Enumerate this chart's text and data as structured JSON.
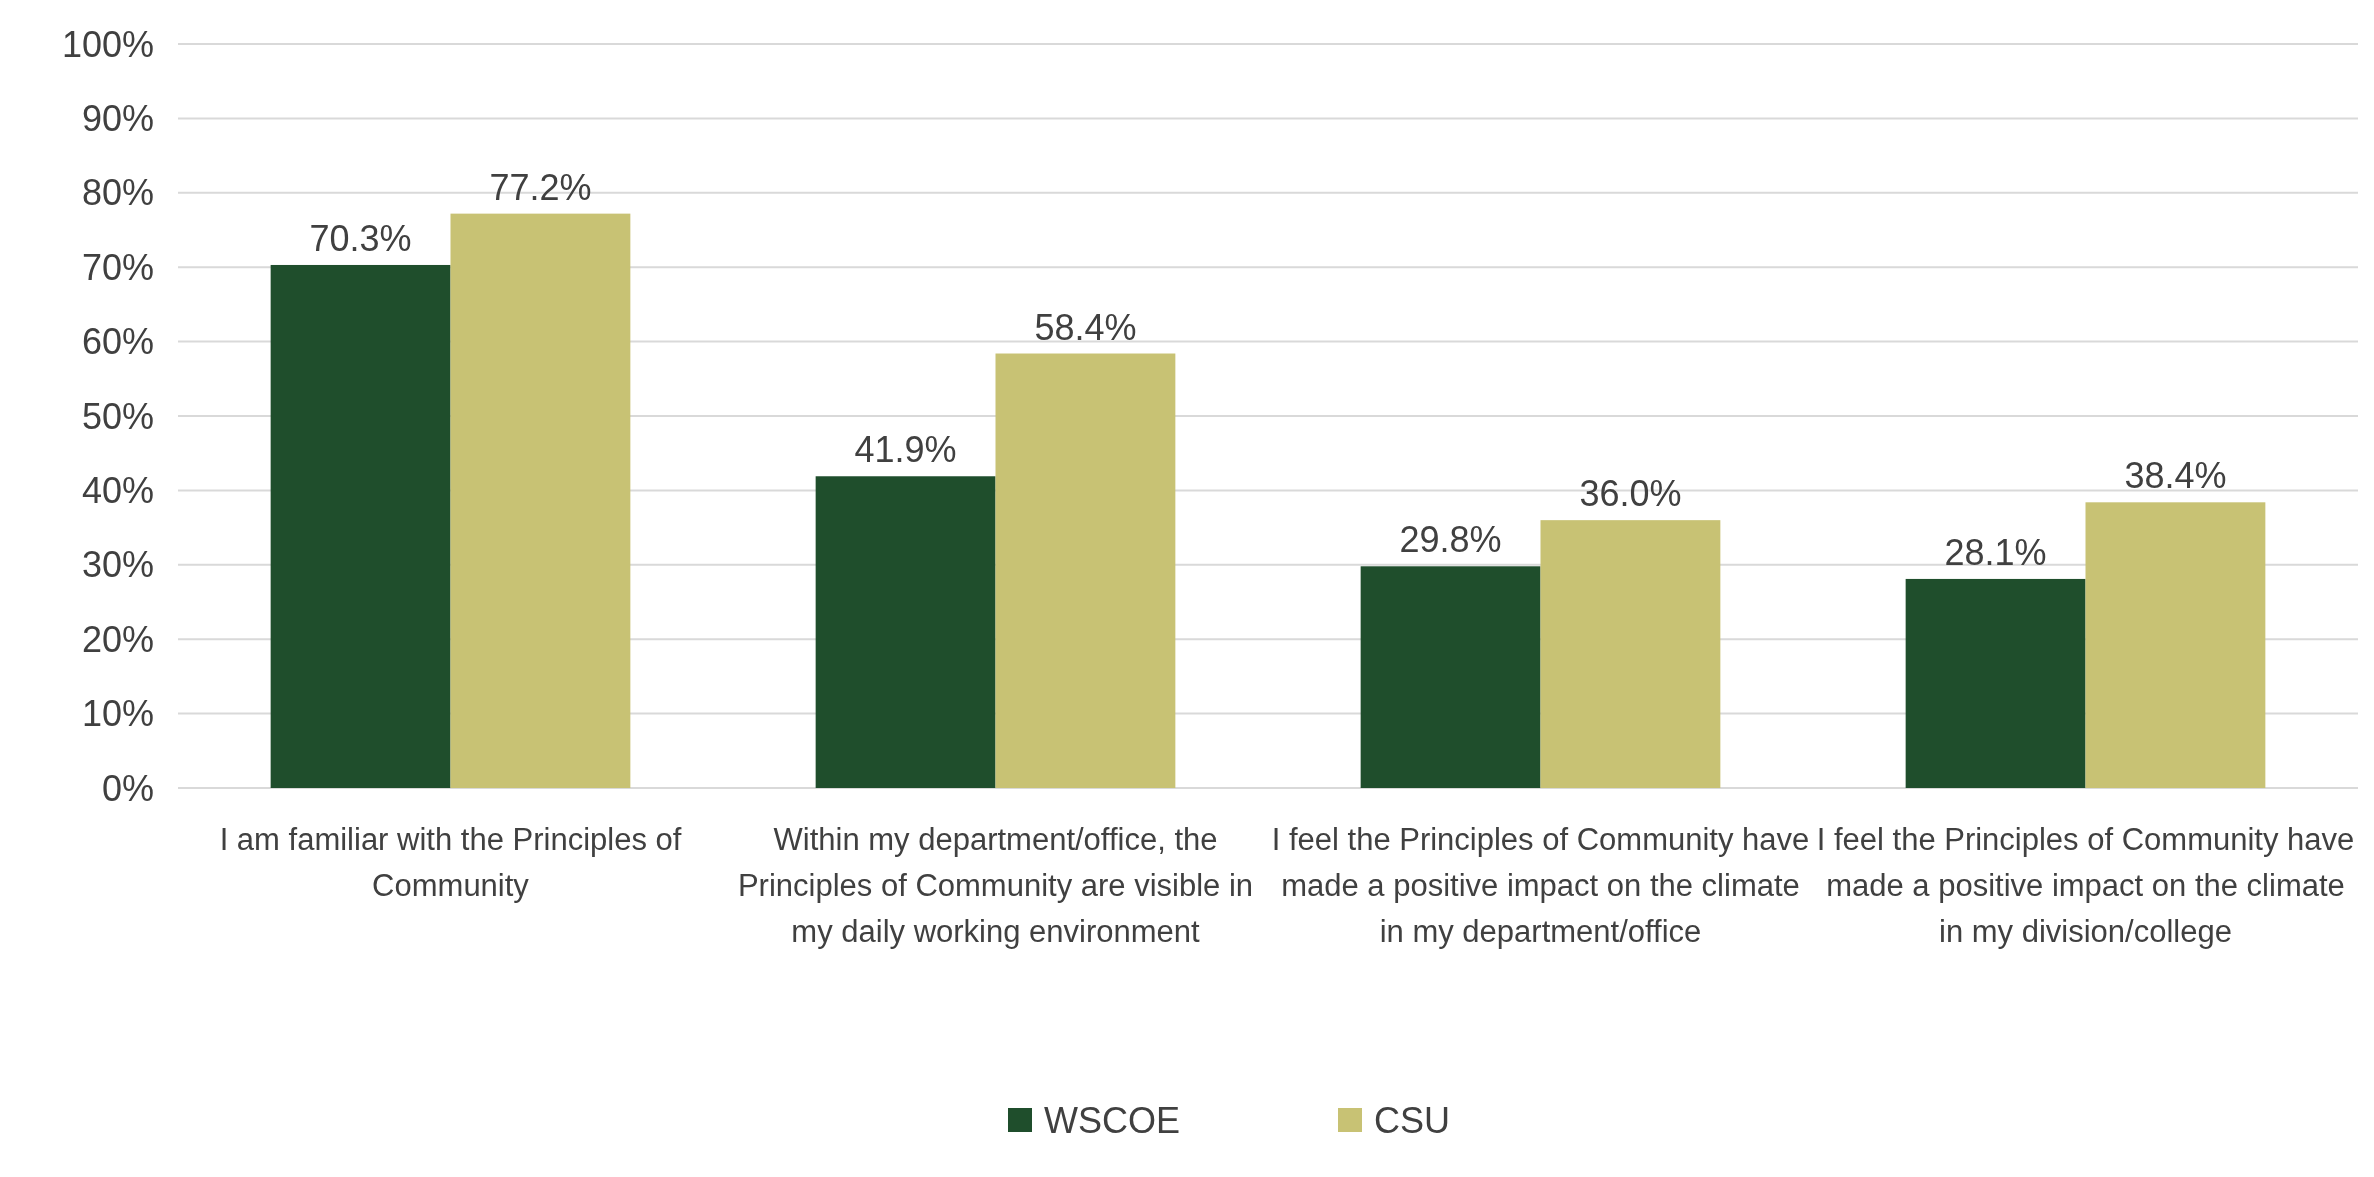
{
  "chart_data": {
    "type": "bar",
    "categories": [
      "I am familiar with the Principles of Community",
      "Within my department/office, the Principles of Community are visible in my daily working environment",
      "I feel the Principles of Community have made a positive impact on the climate in my department/office",
      "I feel the Principles of Community have made a positive impact on the climate in my division/college"
    ],
    "series": [
      {
        "name": "WSCOE",
        "color": "#1f4e2c",
        "values": [
          70.3,
          41.9,
          29.8,
          28.1
        ],
        "value_labels": [
          "70.3%",
          "41.9%",
          "29.8%",
          "28.1%"
        ]
      },
      {
        "name": "CSU",
        "color": "#c8c274",
        "values": [
          77.2,
          58.4,
          36.0,
          38.4
        ],
        "value_labels": [
          "77.2%",
          "58.4%",
          "36.0%",
          "38.4%"
        ]
      }
    ],
    "ylim": [
      0,
      100
    ],
    "yticks": [
      {
        "value": 0,
        "label": "0%"
      },
      {
        "value": 10,
        "label": "10%"
      },
      {
        "value": 20,
        "label": "20%"
      },
      {
        "value": 30,
        "label": "30%"
      },
      {
        "value": 40,
        "label": "40%"
      },
      {
        "value": 50,
        "label": "50%"
      },
      {
        "value": 60,
        "label": "60%"
      },
      {
        "value": 70,
        "label": "70%"
      },
      {
        "value": 80,
        "label": "80%"
      },
      {
        "value": 90,
        "label": "90%"
      },
      {
        "value": 100,
        "label": "100%"
      }
    ],
    "grid": "y",
    "legend": "bottom"
  }
}
